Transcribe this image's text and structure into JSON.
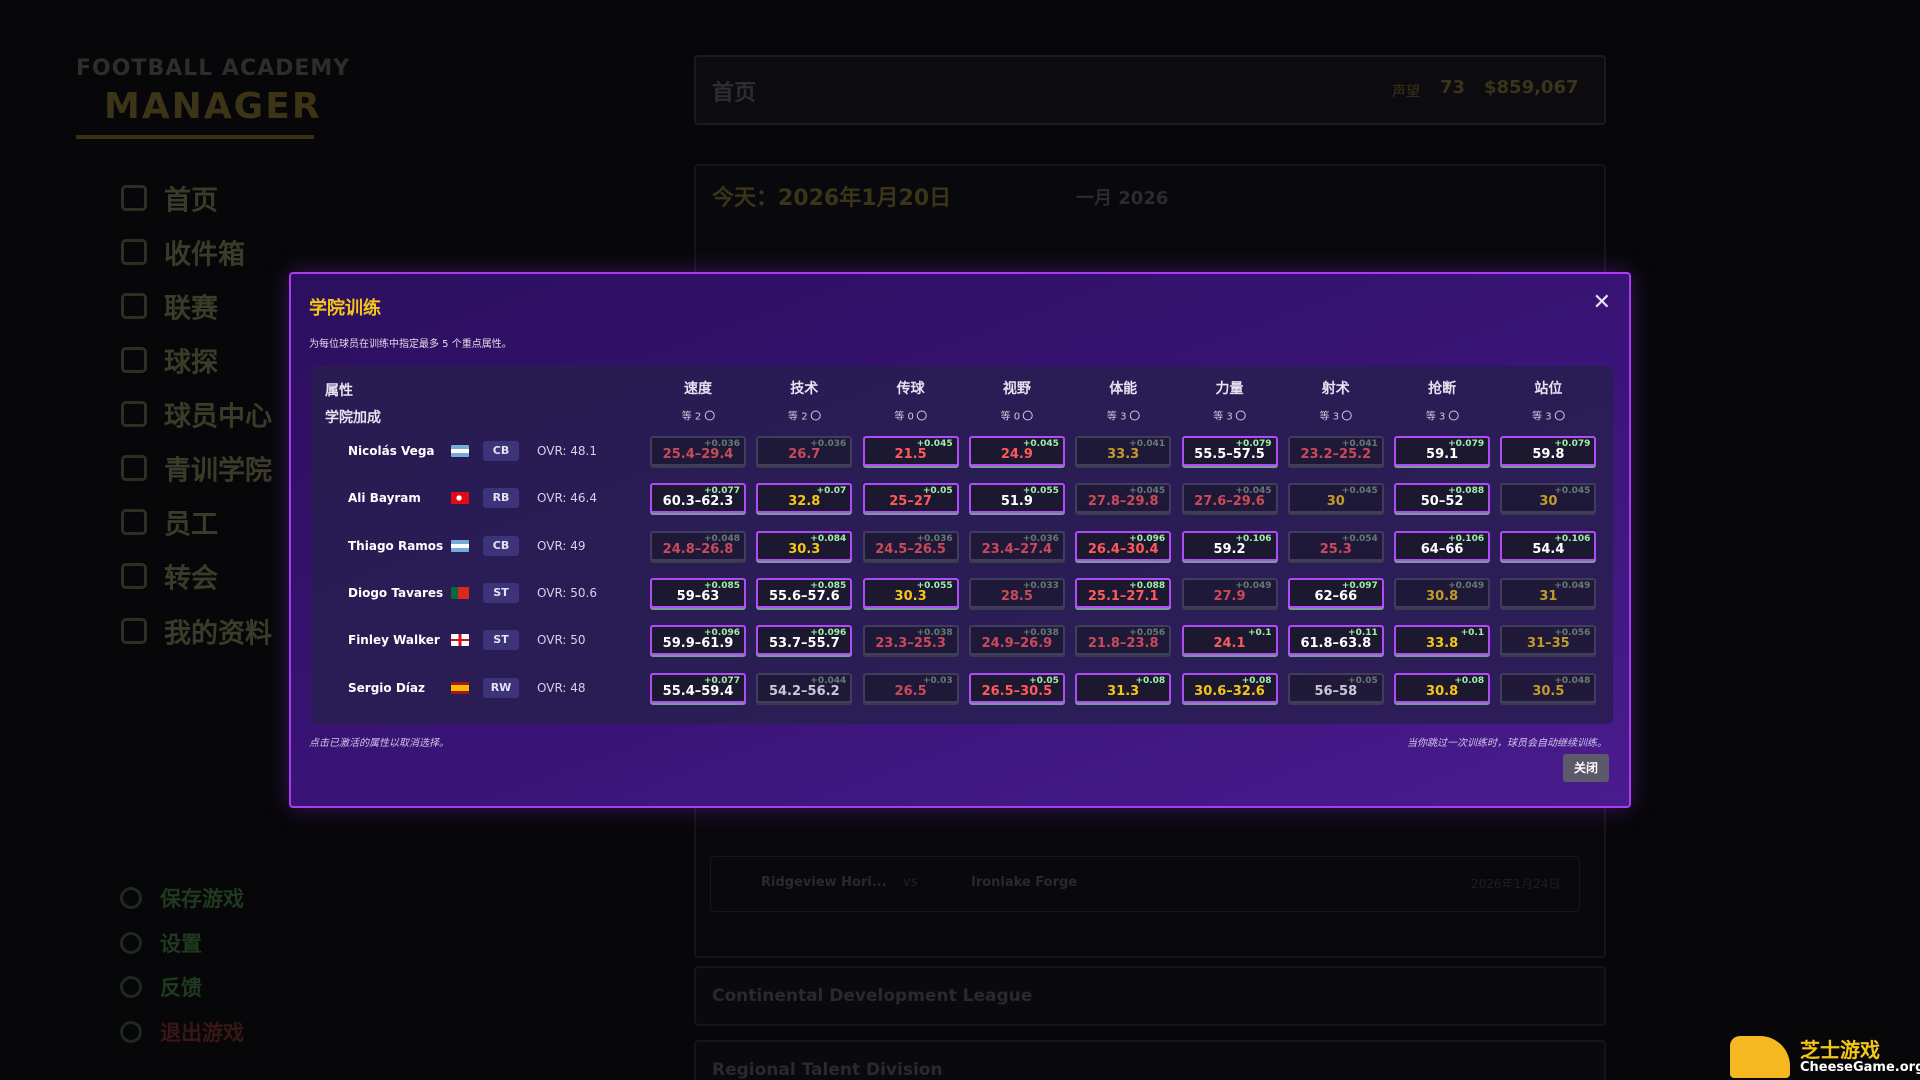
{
  "sidebar": {
    "logo_top": "FOOTBALL ACADEMY",
    "logo_main": "MANAGER",
    "nav": [
      "首页",
      "收件箱",
      "联赛",
      "球探",
      "球员中心",
      "青训学院",
      "员工",
      "转会",
      "我的资料"
    ],
    "bottom": [
      "保存游戏",
      "设置",
      "反馈",
      "退出游戏"
    ]
  },
  "topbar": {
    "title": "首页",
    "reputation_label": "声望",
    "reputation": "73",
    "money": "$859,067"
  },
  "main": {
    "today": "今天：2026年1月20日",
    "month": "一月 2026",
    "fixture": {
      "home": "Ridgeview Hori...",
      "vs": "vs",
      "away": "Ironlake Forge",
      "date": "2026年1月24日"
    },
    "leagues": [
      "Continental Development League",
      "Regional Talent Division"
    ]
  },
  "modal": {
    "title": "学院训练",
    "subtitle": "为每位球员在训练中指定最多 5 个重点属性。",
    "header_label": "属性",
    "bonus_label": "学院加成",
    "columns": [
      "速度",
      "技术",
      "传球",
      "视野",
      "体能",
      "力量",
      "射术",
      "抢断",
      "站位"
    ],
    "bonuses": [
      "等 2",
      "等 2",
      "等 0",
      "等 0",
      "等 3",
      "等 3",
      "等 3",
      "等 3",
      "等 3"
    ],
    "rows": [
      {
        "name": "Nicolás Vega",
        "position": "CB",
        "ovr": "OVR: 48.1",
        "cells": [
          {
            "value": "25.4–29.4",
            "delta": "+0.036",
            "active": false
          },
          {
            "value": "26.7",
            "delta": "+0.036",
            "active": false
          },
          {
            "value": "21.5",
            "delta": "+0.045",
            "active": true
          },
          {
            "value": "24.9",
            "delta": "+0.045",
            "active": true
          },
          {
            "value": "33.3",
            "delta": "+0.041",
            "active": false
          },
          {
            "value": "55.5–57.5",
            "delta": "+0.079",
            "active": true
          },
          {
            "value": "23.2–25.2",
            "delta": "+0.041",
            "active": false
          },
          {
            "value": "59.1",
            "delta": "+0.079",
            "active": true
          },
          {
            "value": "59.8",
            "delta": "+0.079",
            "active": true
          }
        ]
      },
      {
        "name": "Ali Bayram",
        "position": "RB",
        "ovr": "OVR: 46.4",
        "cells": [
          {
            "value": "60.3–62.3",
            "delta": "+0.077",
            "active": true
          },
          {
            "value": "32.8",
            "delta": "+0.07",
            "active": true
          },
          {
            "value": "25–27",
            "delta": "+0.05",
            "active": true
          },
          {
            "value": "51.9",
            "delta": "+0.055",
            "active": true
          },
          {
            "value": "27.8–29.8",
            "delta": "+0.045",
            "active": false
          },
          {
            "value": "27.6–29.6",
            "delta": "+0.045",
            "active": false
          },
          {
            "value": "30",
            "delta": "+0.045",
            "active": false
          },
          {
            "value": "50–52",
            "delta": "+0.088",
            "active": true
          },
          {
            "value": "30",
            "delta": "+0.045",
            "active": false
          }
        ]
      },
      {
        "name": "Thiago Ramos",
        "position": "CB",
        "ovr": "OVR: 49",
        "cells": [
          {
            "value": "24.8–26.8",
            "delta": "+0.048",
            "active": false
          },
          {
            "value": "30.3",
            "delta": "+0.084",
            "active": true
          },
          {
            "value": "24.5–26.5",
            "delta": "+0.036",
            "active": false
          },
          {
            "value": "23.4–27.4",
            "delta": "+0.036",
            "active": false
          },
          {
            "value": "26.4–30.4",
            "delta": "+0.096",
            "active": true
          },
          {
            "value": "59.2",
            "delta": "+0.106",
            "active": true
          },
          {
            "value": "25.3",
            "delta": "+0.054",
            "active": false
          },
          {
            "value": "64–66",
            "delta": "+0.106",
            "active": true
          },
          {
            "value": "54.4",
            "delta": "+0.106",
            "active": true
          }
        ]
      },
      {
        "name": "Diogo Tavares",
        "position": "ST",
        "ovr": "OVR: 50.6",
        "cells": [
          {
            "value": "59–63",
            "delta": "+0.085",
            "active": true
          },
          {
            "value": "55.6–57.6",
            "delta": "+0.085",
            "active": true
          },
          {
            "value": "30.3",
            "delta": "+0.055",
            "active": true
          },
          {
            "value": "28.5",
            "delta": "+0.033",
            "active": false
          },
          {
            "value": "25.1–27.1",
            "delta": "+0.088",
            "active": true
          },
          {
            "value": "27.9",
            "delta": "+0.049",
            "active": false
          },
          {
            "value": "62–66",
            "delta": "+0.097",
            "active": true
          },
          {
            "value": "30.8",
            "delta": "+0.049",
            "active": false
          },
          {
            "value": "31",
            "delta": "+0.049",
            "active": false
          }
        ]
      },
      {
        "name": "Finley Walker",
        "position": "ST",
        "ovr": "OVR: 50",
        "cells": [
          {
            "value": "59.9–61.9",
            "delta": "+0.096",
            "active": true
          },
          {
            "value": "53.7–55.7",
            "delta": "+0.096",
            "active": true
          },
          {
            "value": "23.3–25.3",
            "delta": "+0.038",
            "active": false
          },
          {
            "value": "24.9–26.9",
            "delta": "+0.038",
            "active": false
          },
          {
            "value": "21.8–23.8",
            "delta": "+0.056",
            "active": false
          },
          {
            "value": "24.1",
            "delta": "+0.1",
            "active": true
          },
          {
            "value": "61.8–63.8",
            "delta": "+0.11",
            "active": true
          },
          {
            "value": "33.8",
            "delta": "+0.1",
            "active": true
          },
          {
            "value": "31–35",
            "delta": "+0.056",
            "active": false
          }
        ]
      },
      {
        "name": "Sergio Díaz",
        "position": "RW",
        "ovr": "OVR: 48",
        "cells": [
          {
            "value": "55.4–59.4",
            "delta": "+0.077",
            "active": true
          },
          {
            "value": "54.2–56.2",
            "delta": "+0.044",
            "active": false
          },
          {
            "value": "26.5",
            "delta": "+0.03",
            "active": false
          },
          {
            "value": "26.5–30.5",
            "delta": "+0.05",
            "active": true
          },
          {
            "value": "31.3",
            "delta": "+0.08",
            "active": true
          },
          {
            "value": "30.6–32.6",
            "delta": "+0.08",
            "active": true
          },
          {
            "value": "56–58",
            "delta": "+0.05",
            "active": false
          },
          {
            "value": "30.8",
            "delta": "+0.08",
            "active": true
          },
          {
            "value": "30.5",
            "delta": "+0.048",
            "active": false
          }
        ]
      }
    ],
    "footer_left": "点击已激活的属性以取消选择。",
    "footer_right": "当你跳过一次训练时，球员会自动继续训练。",
    "close_button": "关闭"
  },
  "watermark": {
    "title": "芝士游戏",
    "url": "CheeseGame.org"
  }
}
